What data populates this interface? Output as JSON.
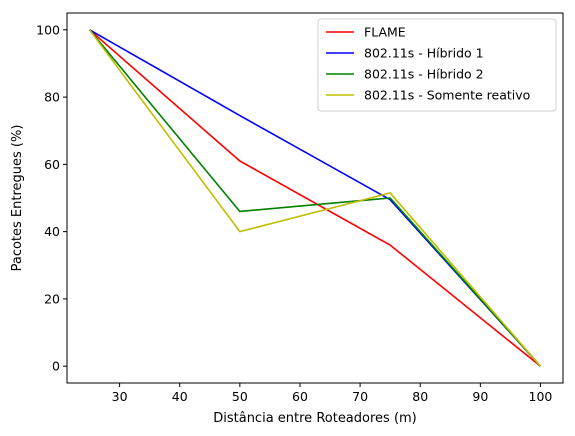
{
  "chart_data": {
    "type": "line",
    "xlabel": "Distância entre Roteadores (m)",
    "ylabel": "Pacotes Entregues (%)",
    "x": [
      25,
      50,
      75,
      100
    ],
    "xlim": [
      21.25,
      103.75
    ],
    "ylim": [
      -5,
      105
    ],
    "xticks": [
      30,
      40,
      50,
      60,
      70,
      80,
      90,
      100
    ],
    "yticks": [
      0,
      20,
      40,
      60,
      80,
      100
    ],
    "grid": false,
    "legend_position": "top-right",
    "series": [
      {
        "name": "FLAME",
        "color": "#ff0000",
        "values": [
          100,
          61,
          36,
          0
        ]
      },
      {
        "name": "802.11s - Híbrido 1",
        "color": "#0000ff",
        "values": [
          100,
          74.5,
          49.5,
          0
        ]
      },
      {
        "name": "802.11s - Híbrido 2",
        "color": "#008000",
        "values": [
          100,
          46,
          50,
          0
        ]
      },
      {
        "name": "802.11s - Somente reativo",
        "color": "#bfbf00",
        "values": [
          100,
          40,
          51.5,
          0
        ]
      }
    ]
  }
}
